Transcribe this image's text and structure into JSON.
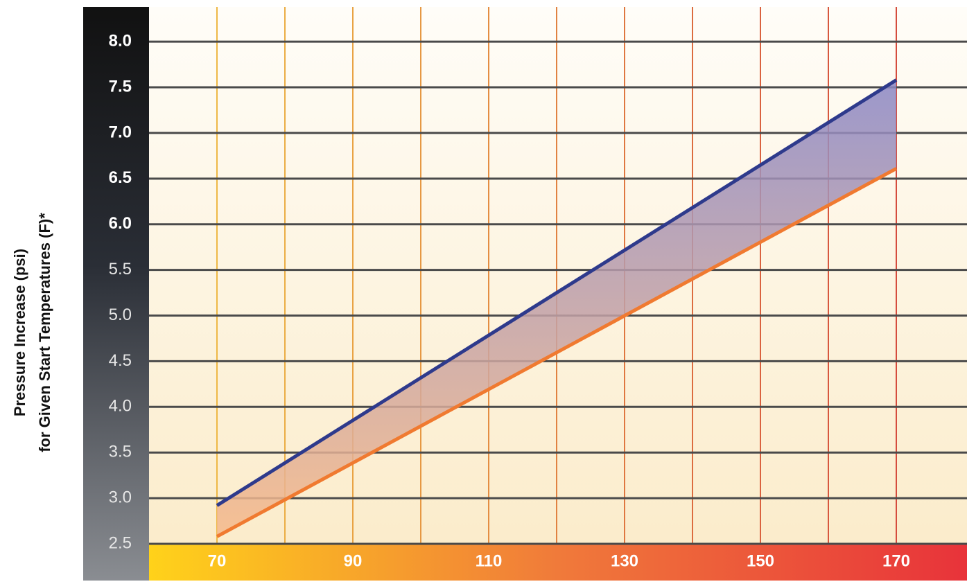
{
  "chart_data": {
    "type": "line",
    "y_label_lines": [
      "Pressure Increase (psi)",
      "for Given Start Temperatures (F)*"
    ],
    "xlim": [
      60,
      180
    ],
    "xticks": [
      70,
      90,
      110,
      130,
      150,
      170
    ],
    "x_grid": [
      70,
      80,
      90,
      100,
      110,
      120,
      130,
      140,
      150,
      160,
      170
    ],
    "ylim": [
      2.5,
      8.4
    ],
    "yticks": [
      {
        "value": 2.5,
        "label": "2.5"
      },
      {
        "value": 3,
        "label": "3.0"
      },
      {
        "value": 3.5,
        "label": "3.5"
      },
      {
        "value": 4,
        "label": "4.0"
      },
      {
        "value": 4.5,
        "label": "4.5"
      },
      {
        "value": 5,
        "label": "5.0"
      },
      {
        "value": 5.5,
        "label": "5.5"
      },
      {
        "value": 6,
        "label": "6.0"
      },
      {
        "value": 6.5,
        "label": "6.5"
      },
      {
        "value": 7,
        "label": "7.0"
      },
      {
        "value": 7.5,
        "label": "7.5"
      },
      {
        "value": 8,
        "label": "8.0"
      }
    ],
    "grid": true,
    "fill_between": true,
    "x": [
      70,
      170
    ],
    "series": [
      {
        "color": "#2e3a8c",
        "values": [
          2.92,
          7.58
        ]
      },
      {
        "color": "#f07a30",
        "values": [
          2.58,
          6.61
        ]
      }
    ]
  }
}
